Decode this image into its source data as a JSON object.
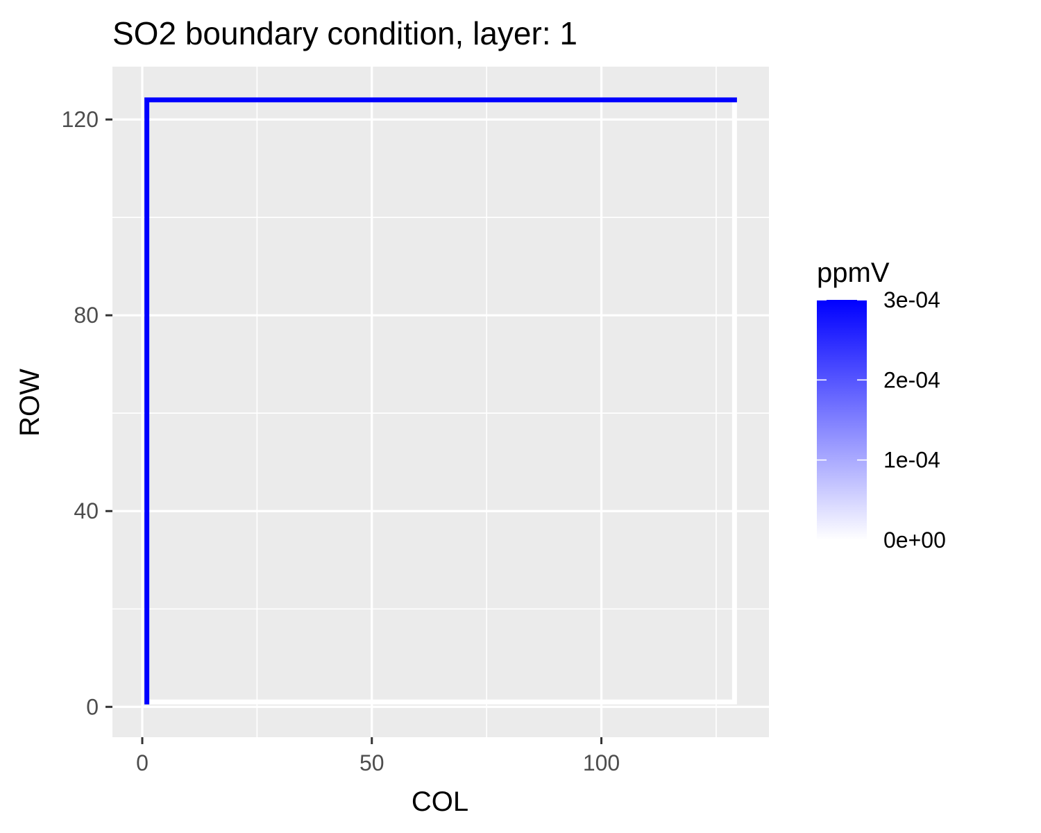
{
  "chart_data": {
    "type": "line",
    "title": "SO2 boundary condition, layer: 1",
    "xlabel": "COL",
    "ylabel": "ROW",
    "xlim": [
      -6.5,
      136.5
    ],
    "ylim": [
      -6.2,
      130.8
    ],
    "x_ticks": [
      0,
      50,
      100
    ],
    "x_tick_labels": [
      "0",
      "50",
      "100"
    ],
    "x_minor_ticks": [
      25,
      75,
      125
    ],
    "y_ticks": [
      0,
      40,
      80,
      120
    ],
    "y_tick_labels": [
      "0",
      "40",
      "80",
      "120"
    ],
    "y_minor_ticks": [
      20,
      60,
      100
    ],
    "grid": true,
    "panel_background": "#ebebeb",
    "legend": {
      "title": "ppmV",
      "position": "right",
      "low_color": "#ffffff",
      "high_color": "#0000ff",
      "range": [
        0,
        0.0003
      ],
      "breaks": [
        0,
        0.0001,
        0.0002,
        0.0003
      ],
      "labels": [
        "0e+00",
        "1e-04",
        "2e-04",
        "3e-04"
      ]
    },
    "series": [
      {
        "points": [
          [
            1,
            1
          ],
          [
            1,
            124
          ],
          [
            129,
            124
          ]
        ],
        "value": 0.0003,
        "color": "#0000ff"
      },
      {
        "points": [
          [
            129,
            124
          ],
          [
            129,
            1
          ],
          [
            1,
            1
          ]
        ],
        "value": 0,
        "color": "#ffffff"
      }
    ]
  }
}
